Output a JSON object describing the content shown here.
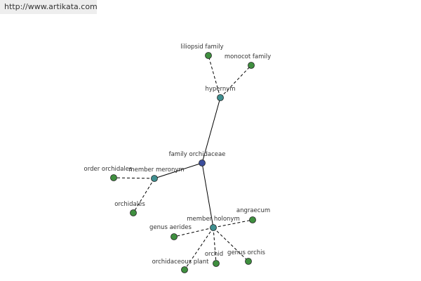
{
  "header": {
    "url": "http://www.artikata.com"
  },
  "nodes": [
    {
      "label": "family orchidaceae"
    },
    {
      "label": "hypernym"
    },
    {
      "label": "liliopsid family"
    },
    {
      "label": "monocot family"
    },
    {
      "label": "member meronym"
    },
    {
      "label": "order orchidales"
    },
    {
      "label": "orchidales"
    },
    {
      "label": "member holonym"
    },
    {
      "label": "angraecum"
    },
    {
      "label": "genus aerides"
    },
    {
      "label": "orchid"
    },
    {
      "label": "genus orchis"
    },
    {
      "label": "orchidaceous plant"
    }
  ]
}
